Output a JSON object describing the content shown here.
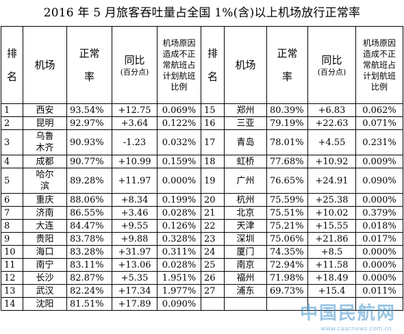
{
  "title": "2016 年 5 月旅客吞吐量占全国 1%(含)以上机场放行正常率",
  "headers": {
    "rank": "排名",
    "airport": "机场",
    "rate": "正常率",
    "yoy": "同比",
    "yoy_unit": "(百分点)",
    "ratio": "机场原因造成不正常航班占计划航班比例"
  },
  "left_rows": [
    {
      "rank": "1",
      "airport": "西安",
      "rate": "93.54%",
      "yoy": "+12.75",
      "ratio": "0.069%"
    },
    {
      "rank": "2",
      "airport": "昆明",
      "rate": "92.97%",
      "yoy": "+3.64",
      "ratio": "0.122%"
    },
    {
      "rank": "3",
      "airport": "乌鲁木齐",
      "rate": "90.93%",
      "yoy": "-1.23",
      "ratio": "0.032%"
    },
    {
      "rank": "4",
      "airport": "成都",
      "rate": "90.77%",
      "yoy": "+10.99",
      "ratio": "0.159%"
    },
    {
      "rank": "5",
      "airport": "哈尔滨",
      "rate": "89.28%",
      "yoy": "+11.97",
      "ratio": "0.000%"
    },
    {
      "rank": "6",
      "airport": "重庆",
      "rate": "88.06%",
      "yoy": "+8.34",
      "ratio": "0.199%"
    },
    {
      "rank": "7",
      "airport": "济南",
      "rate": "86.55%",
      "yoy": "+3.46",
      "ratio": "0.028%"
    },
    {
      "rank": "8",
      "airport": "大连",
      "rate": "84.47%",
      "yoy": "+9.55",
      "ratio": "0.126%"
    },
    {
      "rank": "9",
      "airport": "贵阳",
      "rate": "83.78%",
      "yoy": "+9.88",
      "ratio": "0.328%"
    },
    {
      "rank": "10",
      "airport": "海口",
      "rate": "83.28%",
      "yoy": "+31.97",
      "ratio": "0.311%"
    },
    {
      "rank": "11",
      "airport": "南宁",
      "rate": "83.11%",
      "yoy": "+13.06",
      "ratio": "0.028%"
    },
    {
      "rank": "12",
      "airport": "长沙",
      "rate": "82.87%",
      "yoy": "+5.35",
      "ratio": "1.951%"
    },
    {
      "rank": "13",
      "airport": "武汉",
      "rate": "82.24%",
      "yoy": "+17.34",
      "ratio": "1.977%"
    },
    {
      "rank": "14",
      "airport": "沈阳",
      "rate": "81.51%",
      "yoy": "+17.89",
      "ratio": "0.090%"
    }
  ],
  "right_rows": [
    {
      "rank": "15",
      "airport": "郑州",
      "rate": "80.39%",
      "yoy": "+6.83",
      "ratio": "0.062%"
    },
    {
      "rank": "16",
      "airport": "三亚",
      "rate": "79.19%",
      "yoy": "+22.63",
      "ratio": "0.071%"
    },
    {
      "rank": "17",
      "airport": "青岛",
      "rate": "78.01%",
      "yoy": "+4.55",
      "ratio": "0.231%"
    },
    {
      "rank": "18",
      "airport": "虹桥",
      "rate": "77.68%",
      "yoy": "+10.92",
      "ratio": "0.009%"
    },
    {
      "rank": "19",
      "airport": "广州",
      "rate": "76.65%",
      "yoy": "+24.91",
      "ratio": "0.090%"
    },
    {
      "rank": "20",
      "airport": "杭州",
      "rate": "75.59%",
      "yoy": "+25.38",
      "ratio": "0.000%"
    },
    {
      "rank": "21",
      "airport": "北京",
      "rate": "75.51%",
      "yoy": "+10.02",
      "ratio": "0.379%"
    },
    {
      "rank": "22",
      "airport": "天津",
      "rate": "75.21%",
      "yoy": "+15.55",
      "ratio": "0.018%"
    },
    {
      "rank": "23",
      "airport": "深圳",
      "rate": "75.06%",
      "yoy": "+21.86",
      "ratio": "0.017%"
    },
    {
      "rank": "24",
      "airport": "厦门",
      "rate": "74.35%",
      "yoy": "+8.5",
      "ratio": "0.000%"
    },
    {
      "rank": "25",
      "airport": "南京",
      "rate": "72.94%",
      "yoy": "+11.58",
      "ratio": "0.000%"
    },
    {
      "rank": "26",
      "airport": "福州",
      "rate": "71.98%",
      "yoy": "+18.49",
      "ratio": "0.000%"
    },
    {
      "rank": "27",
      "airport": "浦东",
      "rate": "69.73%",
      "yoy": "+15.4",
      "ratio": "0.011%"
    },
    {
      "rank": "",
      "airport": "",
      "rate": "",
      "yoy": "",
      "ratio": ""
    }
  ],
  "watermark": {
    "logo": "中国民航网",
    "url": "www.caacnews.com.cn"
  }
}
